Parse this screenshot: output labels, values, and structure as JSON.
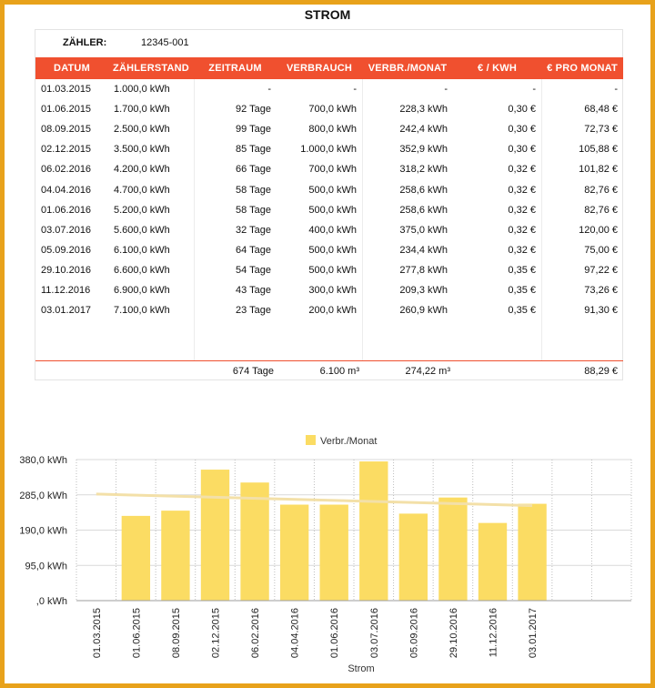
{
  "title": "STROM",
  "meter": {
    "label": "ZÄHLER:",
    "value": "12345-001"
  },
  "table": {
    "headers": [
      "DATUM",
      "ZÄHLERSTAND",
      "ZEITRAUM",
      "VERBRAUCH",
      "VERBR./MONAT",
      "€ / KWH",
      "€ PRO MONAT"
    ],
    "rows": [
      [
        "01.03.2015",
        "1.000,0 kWh",
        "-",
        "-",
        "-",
        "-",
        "-"
      ],
      [
        "01.06.2015",
        "1.700,0 kWh",
        "92 Tage",
        "700,0 kWh",
        "228,3 kWh",
        "0,30 €",
        "68,48 €"
      ],
      [
        "08.09.2015",
        "2.500,0 kWh",
        "99 Tage",
        "800,0 kWh",
        "242,4 kWh",
        "0,30 €",
        "72,73 €"
      ],
      [
        "02.12.2015",
        "3.500,0 kWh",
        "85 Tage",
        "1.000,0 kWh",
        "352,9 kWh",
        "0,30 €",
        "105,88 €"
      ],
      [
        "06.02.2016",
        "4.200,0 kWh",
        "66 Tage",
        "700,0 kWh",
        "318,2 kWh",
        "0,32 €",
        "101,82 €"
      ],
      [
        "04.04.2016",
        "4.700,0 kWh",
        "58 Tage",
        "500,0 kWh",
        "258,6 kWh",
        "0,32 €",
        "82,76 €"
      ],
      [
        "01.06.2016",
        "5.200,0 kWh",
        "58 Tage",
        "500,0 kWh",
        "258,6 kWh",
        "0,32 €",
        "82,76 €"
      ],
      [
        "03.07.2016",
        "5.600,0 kWh",
        "32 Tage",
        "400,0 kWh",
        "375,0 kWh",
        "0,32 €",
        "120,00 €"
      ],
      [
        "05.09.2016",
        "6.100,0 kWh",
        "64 Tage",
        "500,0 kWh",
        "234,4 kWh",
        "0,32 €",
        "75,00 €"
      ],
      [
        "29.10.2016",
        "6.600,0 kWh",
        "54 Tage",
        "500,0 kWh",
        "277,8 kWh",
        "0,35 €",
        "97,22 €"
      ],
      [
        "11.12.2016",
        "6.900,0 kWh",
        "43 Tage",
        "300,0 kWh",
        "209,3 kWh",
        "0,35 €",
        "73,26 €"
      ],
      [
        "03.01.2017",
        "7.100,0 kWh",
        "23 Tage",
        "200,0 kWh",
        "260,9 kWh",
        "0,35 €",
        "91,30 €"
      ]
    ],
    "totals": {
      "zeitraum": "674 Tage",
      "verbrauch": "6.100 m³",
      "verbr_monat": "274,22 m³",
      "pro_monat": "88,29 €"
    }
  },
  "chart_data": {
    "type": "bar",
    "title": "",
    "xlabel": "Strom",
    "ylabel": "",
    "legend": "top-center",
    "ylim": [
      0,
      380
    ],
    "yticks": [
      0,
      95,
      190,
      285,
      380
    ],
    "ytick_labels": [
      ",0 kWh",
      "95,0 kWh",
      "190,0 kWh",
      "285,0 kWh",
      "380,0 kWh"
    ],
    "categories": [
      "01.03.2015",
      "01.06.2015",
      "08.09.2015",
      "02.12.2015",
      "06.02.2016",
      "04.04.2016",
      "01.06.2016",
      "03.07.2016",
      "05.09.2016",
      "29.10.2016",
      "11.12.2016",
      "03.01.2017",
      "",
      ""
    ],
    "series": [
      {
        "name": "Verbr./Monat",
        "values": [
          0,
          228.3,
          242.4,
          352.9,
          318.2,
          258.6,
          258.6,
          375.0,
          234.4,
          277.8,
          209.3,
          260.9,
          null,
          null
        ],
        "color": "#fbdc63"
      }
    ],
    "trendline": {
      "start": 287,
      "end": 256,
      "color": "#f3e0a8"
    },
    "grid": true
  }
}
